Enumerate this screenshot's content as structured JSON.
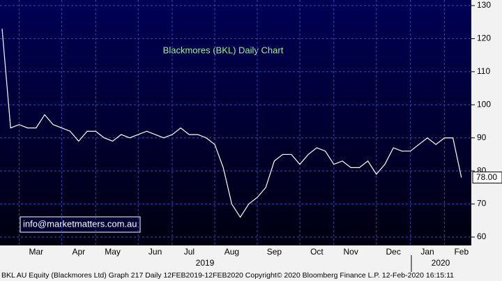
{
  "chart_data": {
    "type": "line",
    "title": "Blackmores (BKL) Daily Chart",
    "watermark": "info@marketmatters.com.au",
    "categories": [
      null,
      null,
      null,
      null,
      "Mar",
      null,
      null,
      null,
      null,
      "Apr",
      null,
      null,
      null,
      "May",
      null,
      null,
      null,
      null,
      "Jun",
      null,
      null,
      null,
      "Jul",
      null,
      null,
      null,
      null,
      "Aug",
      null,
      null,
      null,
      null,
      "Sep",
      null,
      null,
      null,
      null,
      "Oct",
      null,
      null,
      null,
      "Nov",
      null,
      null,
      null,
      null,
      "Dec",
      null,
      null,
      null,
      "Jan",
      null,
      null,
      null,
      "Feb"
    ],
    "values": [
      123,
      93,
      94,
      93,
      93,
      97,
      94,
      93,
      92,
      89,
      92,
      92,
      90,
      89,
      91,
      90,
      91,
      92,
      91,
      90,
      91,
      93,
      91,
      91,
      90,
      88,
      81,
      70,
      66,
      70,
      72,
      75,
      83,
      85,
      85,
      82,
      85,
      87,
      86,
      82,
      83,
      81,
      81,
      83,
      79,
      82,
      87,
      86,
      86,
      88,
      90,
      88,
      90,
      90,
      78
    ],
    "value_labels": [
      null,
      null,
      null,
      null,
      null,
      null,
      null,
      null,
      null,
      null,
      null,
      null,
      null,
      null,
      null,
      null,
      null,
      null,
      null,
      null,
      null,
      null,
      null,
      null,
      null,
      null,
      null,
      null,
      null,
      null,
      null,
      null,
      null,
      null,
      null,
      null,
      null,
      null,
      null,
      null,
      null,
      null,
      null,
      null,
      null,
      null,
      null,
      null,
      null,
      null,
      null,
      null,
      null,
      null,
      "78.00"
    ],
    "color": "#ffffff",
    "years": [
      "2019",
      "2020"
    ],
    "ylim": [
      57,
      132
    ],
    "yticks": [
      60,
      70,
      80,
      90,
      100,
      110,
      120,
      130
    ],
    "grid": true,
    "footer": "BKL AU Equity (Blackmores Ltd) Graph 217  Daily 12FEB2019-12FEB2020  Copyright© 2020 Bloomberg Finance L.P.  12-Feb-2020 16:15:11"
  }
}
